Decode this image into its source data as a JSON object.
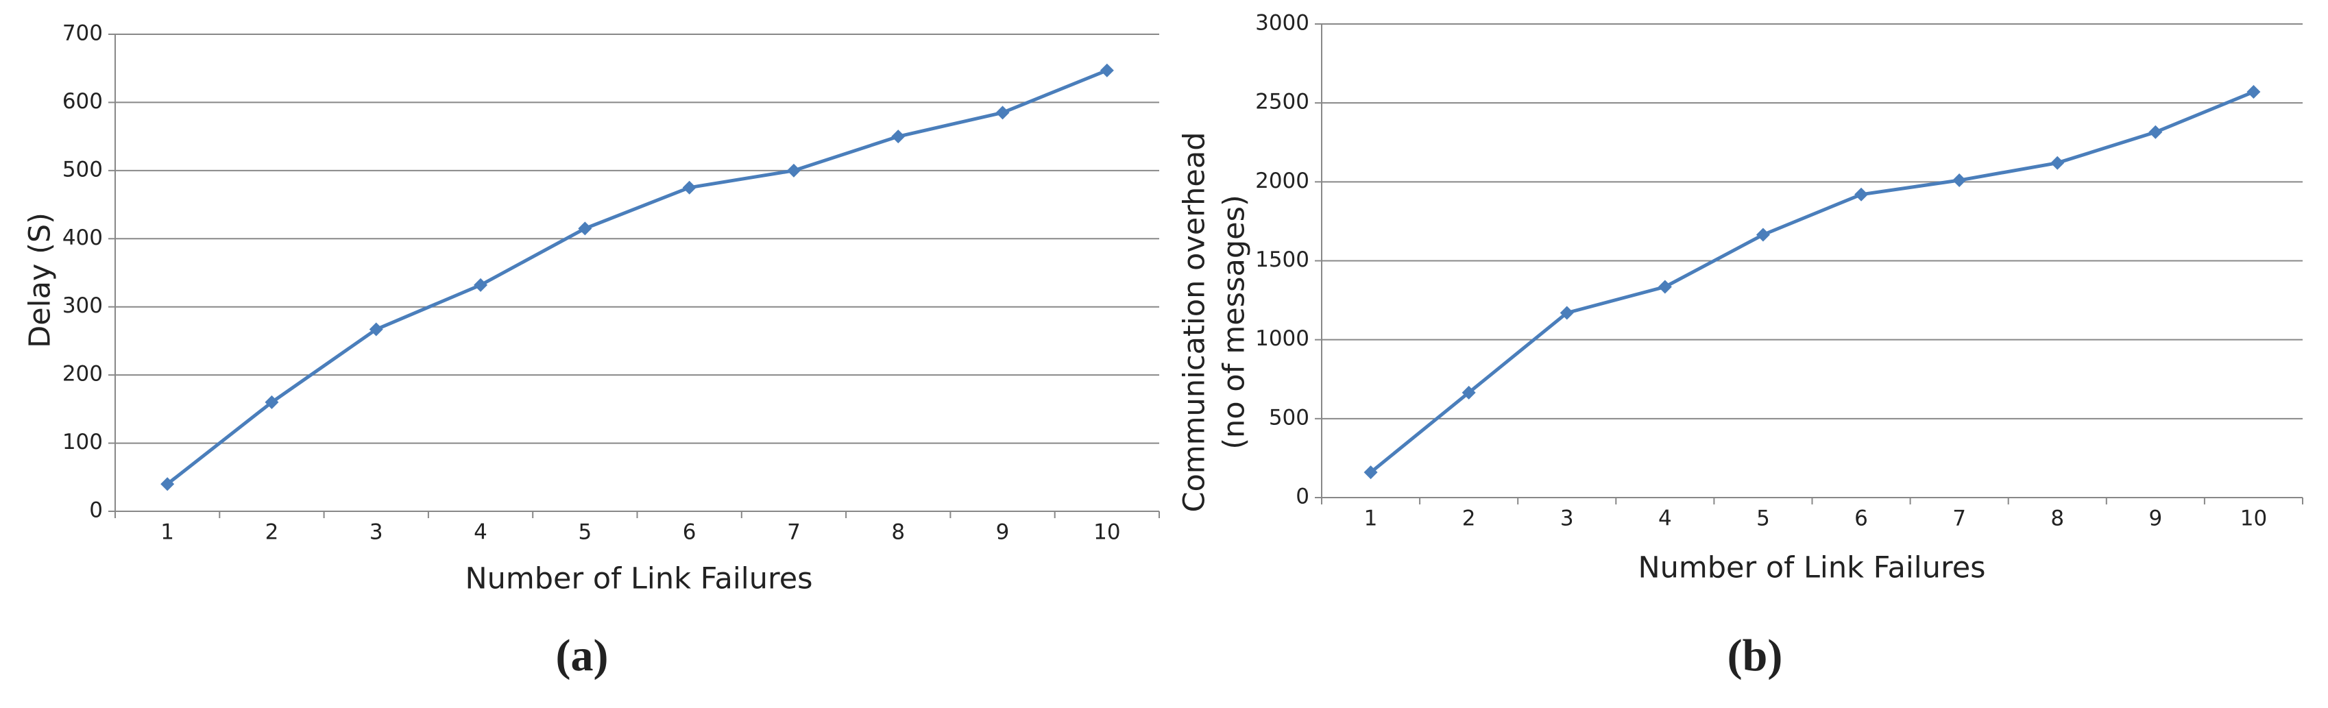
{
  "chart_data": [
    {
      "type": "line",
      "caption": "(a)",
      "xlabel": "Number of Link Failures",
      "ylabel": [
        "Delay (S)"
      ],
      "categories": [
        "1",
        "2",
        "3",
        "4",
        "5",
        "6",
        "7",
        "8",
        "9",
        "10"
      ],
      "values": [
        40,
        160,
        267,
        332,
        415,
        475,
        500,
        550,
        585,
        647
      ],
      "color": "#4a7ebb",
      "ylim": [
        0,
        700
      ],
      "yticks": [
        0,
        100,
        200,
        300,
        400,
        500,
        600,
        700
      ],
      "grid": true
    },
    {
      "type": "line",
      "caption": "(b)",
      "xlabel": "Number of Link Failures",
      "ylabel": [
        "Communication overhead",
        "(no of messages)"
      ],
      "categories": [
        "1",
        "2",
        "3",
        "4",
        "5",
        "6",
        "7",
        "8",
        "9",
        "10"
      ],
      "values": [
        160,
        665,
        1170,
        1335,
        1665,
        1920,
        2010,
        2120,
        2315,
        2570
      ],
      "color": "#4a7ebb",
      "ylim": [
        0,
        3000
      ],
      "yticks": [
        0,
        500,
        1000,
        1500,
        2000,
        2500,
        3000
      ],
      "grid": true
    }
  ]
}
